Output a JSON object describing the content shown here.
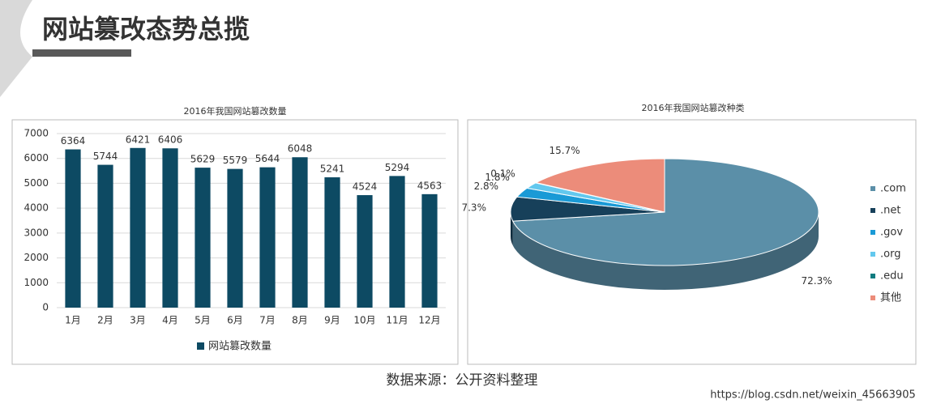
{
  "title": "网站篡改态势总揽",
  "source": "数据来源：公开资料整理",
  "watermark": "https://blog.csdn.net/weixin_45663905",
  "chart_data": [
    {
      "type": "bar",
      "title": "2016年我国网站篡改数量",
      "categories": [
        "1月",
        "2月",
        "3月",
        "4月",
        "5月",
        "6月",
        "7月",
        "8月",
        "9月",
        "10月",
        "11月",
        "12月"
      ],
      "series": [
        {
          "name": "网站篡改数量",
          "color": "#0d4a63",
          "values": [
            6364,
            5744,
            6421,
            6406,
            5629,
            5579,
            5644,
            6048,
            5241,
            4524,
            5294,
            4563
          ]
        }
      ],
      "ylim": [
        0,
        7000
      ],
      "yticks": [
        0,
        1000,
        2000,
        3000,
        4000,
        5000,
        6000,
        7000
      ],
      "grid": true,
      "legend": "bottom"
    },
    {
      "type": "pie",
      "title": "2016年我国网站篡改种类",
      "categories": [
        ".com",
        ".net",
        ".gov",
        ".org",
        ".edu",
        "其他"
      ],
      "values": [
        72.3,
        7.3,
        2.8,
        1.8,
        0.1,
        15.7
      ],
      "value_labels": [
        "72.3%",
        "7.3%",
        "2.8%",
        "1.8%",
        "0.1%",
        "15.7%"
      ],
      "colors": [
        "#5b8fa8",
        "#17405a",
        "#1a9ad6",
        "#63c8ee",
        "#0f7c80",
        "#ec8c7a"
      ],
      "legend": "right"
    }
  ]
}
